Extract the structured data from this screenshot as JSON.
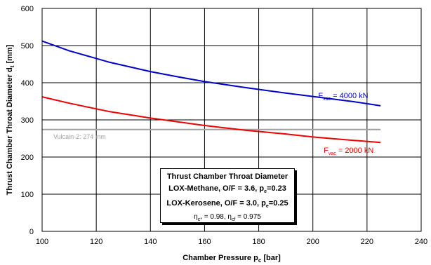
{
  "chart_data": {
    "type": "line",
    "xlabel": "Chamber Pressure p",
    "xlabel_sub": "c",
    "xlabel_unit": "[bar]",
    "ylabel": "Thrust Chamber Throat Diameter d",
    "ylabel_sub": "t",
    "ylabel_unit": "[mm]",
    "xlim": [
      100,
      240
    ],
    "ylim": [
      0,
      600
    ],
    "xticks": [
      100,
      120,
      140,
      160,
      180,
      200,
      220,
      240
    ],
    "yticks": [
      0,
      100,
      200,
      300,
      400,
      500,
      600
    ],
    "grid": true,
    "series": [
      {
        "name": "F_vac = 4000 kN",
        "color": "#0000cc",
        "x": [
          100,
          110,
          125,
          140,
          150,
          160,
          175,
          190,
          200,
          215,
          225
        ],
        "y": [
          512,
          486,
          455,
          430,
          416,
          403,
          387,
          372,
          363,
          349,
          338
        ]
      },
      {
        "name": "F_vac = 2000 kN",
        "color": "#ee0000",
        "x": [
          100,
          110,
          125,
          140,
          150,
          160,
          175,
          190,
          200,
          215,
          225
        ],
        "y": [
          362,
          345,
          322,
          305,
          295,
          285,
          272,
          262,
          254,
          245,
          239
        ]
      }
    ],
    "reference_line": {
      "y": 274,
      "color": "#a0a0a0",
      "label": "Vulcain-2: 274 mm"
    },
    "annotations": [
      {
        "prefix": "F",
        "sub": "vac",
        "suffix": " = 4000 kN",
        "color": "#0000cc"
      },
      {
        "prefix": "F",
        "sub": "vac",
        "suffix": " = 2000 kN",
        "color": "#ee0000"
      }
    ],
    "legend_box": {
      "title": "Thrust Chamber Throat Diameter",
      "line1_prefix": "LOX-Methane, O/F = 3.6, p",
      "line1_sub": "e",
      "line1_suffix": "=0.23",
      "line2_prefix": "LOX-Kerosene, O/F = 3.0, p",
      "line2_sub": "e",
      "line2_suffix": "=0.25",
      "line3": {
        "a_sym": "η",
        "a_sub": "c*",
        "a_val": " = 0.98, ",
        "b_sym": "η",
        "b_sub": "cf",
        "b_val": " = 0.975"
      }
    }
  }
}
